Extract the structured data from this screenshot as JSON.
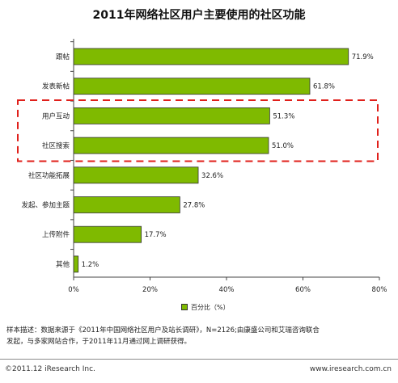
{
  "chart_data": {
    "type": "bar",
    "orientation": "horizontal",
    "title": "2011年网络社区用户主要使用的社区功能",
    "categories": [
      "跟帖",
      "发表新帖",
      "用户互动",
      "社区搜索",
      "社区功能拓展",
      "发起、参加主题",
      "上传附件",
      "其他"
    ],
    "values": [
      71.9,
      61.8,
      51.3,
      51.0,
      32.6,
      27.8,
      17.7,
      1.2
    ],
    "value_labels": [
      "71.9%",
      "61.8%",
      "51.3%",
      "51.0%",
      "32.6%",
      "27.8%",
      "17.7%",
      "1.2%"
    ],
    "series": [
      {
        "name": "百分比（%）",
        "values": [
          71.9,
          61.8,
          51.3,
          51.0,
          32.6,
          27.8,
          17.7,
          1.2
        ]
      }
    ],
    "xlim": [
      0,
      80
    ],
    "x_ticks": [
      0,
      20,
      40,
      60,
      80
    ],
    "x_tick_labels": [
      "0%",
      "20%",
      "40%",
      "60%",
      "80%"
    ],
    "grid": false,
    "legend_position": "bottom",
    "highlighted_categories": [
      "用户互动",
      "社区搜索"
    ],
    "bar_color": "#7fba00",
    "highlight_box_color": "#e0201b"
  },
  "footnote": {
    "line1": "样本描述：数据来源于《2011年中国网络社区用户及站长调研》，N=2126;由康盛公司和艾瑞咨询联合",
    "line2": "发起，与多家网站合作，于2011年11月通过网上调研获得。"
  },
  "footer": {
    "left": "©2011.12 iResearch Inc.",
    "right": "www.iresearch.com.cn"
  }
}
